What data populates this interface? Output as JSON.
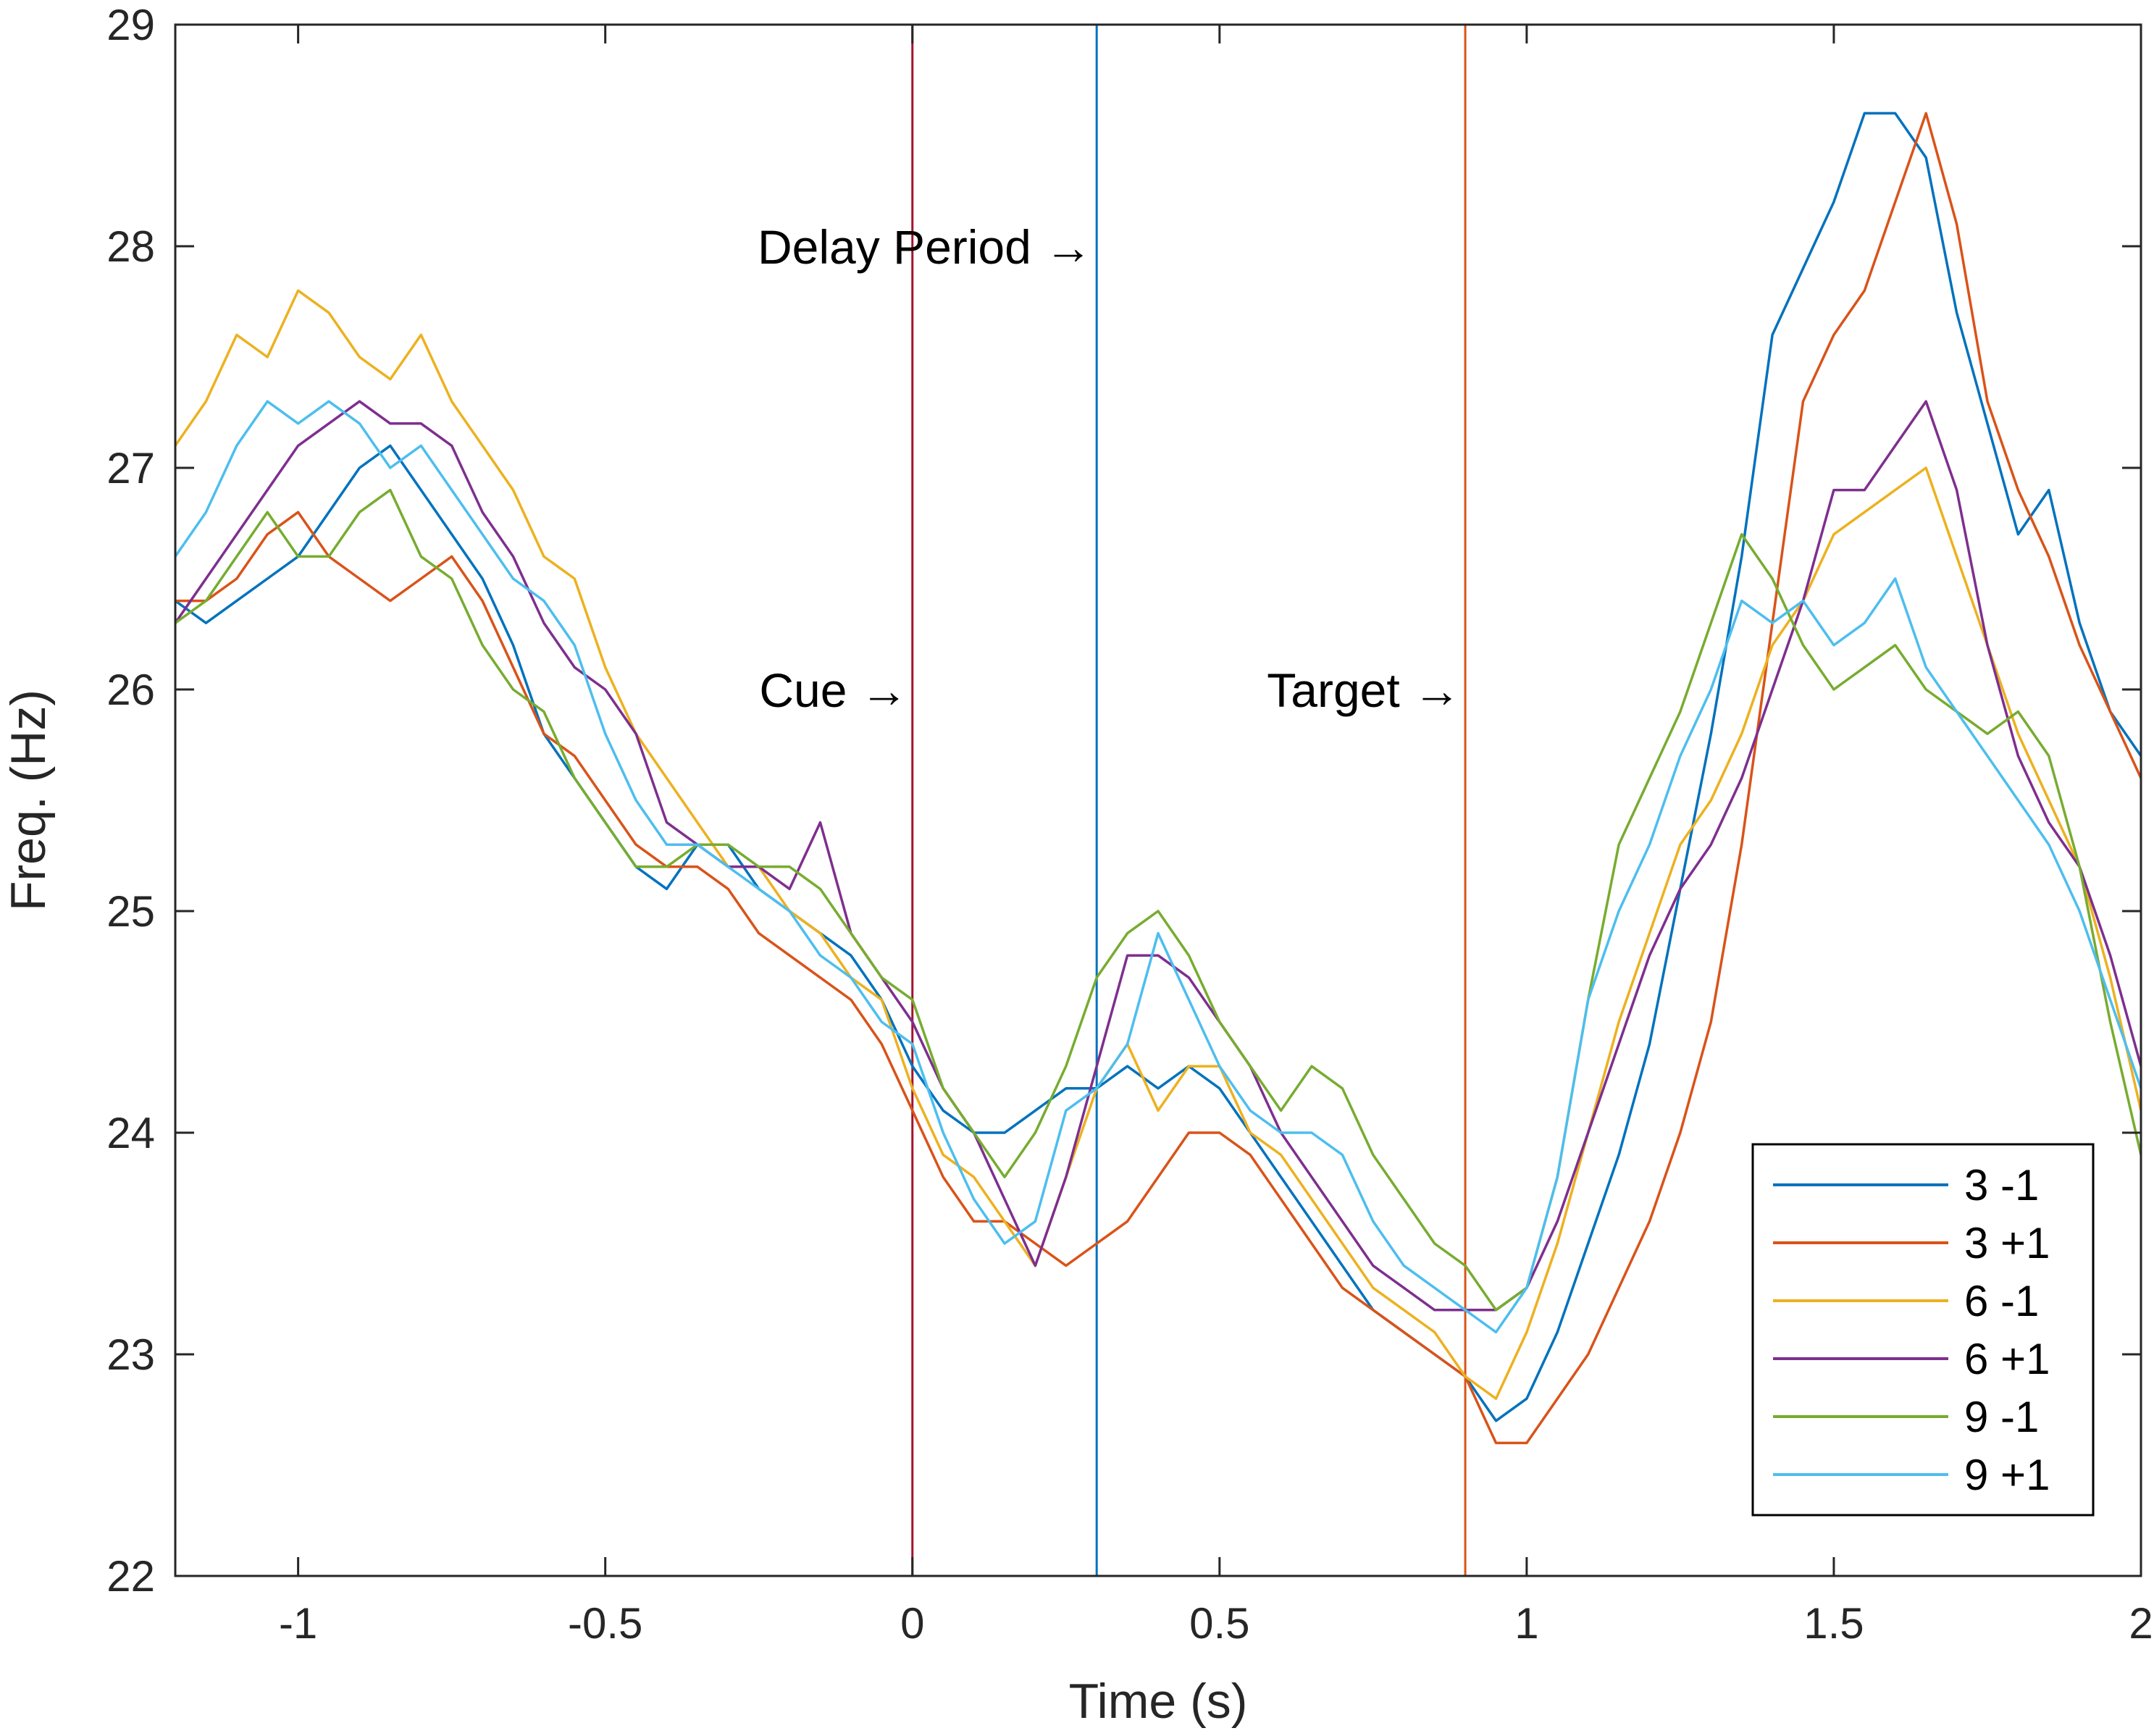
{
  "chart_data": {
    "type": "line",
    "title": "",
    "xlabel": "Time (s)",
    "ylabel": "Freq. (Hz)",
    "xlim": [
      -1.2,
      2
    ],
    "ylim": [
      22,
      29
    ],
    "xticks": [
      -1,
      -0.5,
      0,
      0.5,
      1,
      1.5,
      2
    ],
    "xtick_labels": [
      "-1",
      "-0.5",
      "0",
      "0.5",
      "1",
      "1.5",
      "2"
    ],
    "yticks": [
      22,
      23,
      24,
      25,
      26,
      27,
      28,
      29
    ],
    "ytick_labels": [
      "22",
      "23",
      "24",
      "25",
      "26",
      "27",
      "28",
      "29"
    ],
    "grid": false,
    "legend_position": "bottom-right",
    "vlines": [
      {
        "x": 0,
        "color": "#A2142F"
      },
      {
        "x": 0.3,
        "color": "#0072BD"
      },
      {
        "x": 0.9,
        "color": "#D95319"
      }
    ],
    "annotations": [
      {
        "text": "Cue →",
        "x": 0,
        "y": 26
      },
      {
        "text": "Delay Period →",
        "x": 0.3,
        "y": 28
      },
      {
        "text": "Target →",
        "x": 0.9,
        "y": 26
      }
    ],
    "series": [
      {
        "name": "3 -1",
        "color": "#0072BD",
        "x": [
          -1.2,
          -1.15,
          -1.1,
          -1.05,
          -1.0,
          -0.95,
          -0.9,
          -0.85,
          -0.8,
          -0.75,
          -0.7,
          -0.65,
          -0.6,
          -0.55,
          -0.5,
          -0.45,
          -0.4,
          -0.35,
          -0.3,
          -0.25,
          -0.2,
          -0.15,
          -0.1,
          -0.05,
          0.0,
          0.05,
          0.1,
          0.15,
          0.2,
          0.25,
          0.3,
          0.35,
          0.4,
          0.45,
          0.5,
          0.55,
          0.6,
          0.65,
          0.7,
          0.75,
          0.8,
          0.85,
          0.9,
          0.95,
          1.0,
          1.05,
          1.1,
          1.15,
          1.2,
          1.25,
          1.3,
          1.35,
          1.4,
          1.45,
          1.5,
          1.55,
          1.6,
          1.65,
          1.7,
          1.75,
          1.8,
          1.85,
          1.9,
          1.95,
          2.0
        ],
        "values": [
          26.4,
          26.3,
          26.4,
          26.5,
          26.6,
          26.8,
          27.0,
          27.1,
          26.9,
          26.7,
          26.5,
          26.2,
          25.8,
          25.6,
          25.4,
          25.2,
          25.1,
          25.3,
          25.3,
          25.1,
          25.0,
          24.9,
          24.8,
          24.6,
          24.3,
          24.1,
          24.0,
          24.0,
          24.1,
          24.2,
          24.2,
          24.3,
          24.2,
          24.3,
          24.2,
          24.0,
          23.8,
          23.6,
          23.4,
          23.2,
          23.1,
          23.0,
          22.9,
          22.7,
          22.8,
          23.1,
          23.5,
          23.9,
          24.4,
          25.1,
          25.8,
          26.6,
          27.6,
          27.9,
          28.2,
          28.6,
          28.6,
          28.4,
          27.7,
          27.2,
          26.7,
          26.9,
          26.3,
          25.9,
          25.7
        ]
      },
      {
        "name": "3 +1",
        "color": "#D95319",
        "x": [
          -1.2,
          -1.15,
          -1.1,
          -1.05,
          -1.0,
          -0.95,
          -0.9,
          -0.85,
          -0.8,
          -0.75,
          -0.7,
          -0.65,
          -0.6,
          -0.55,
          -0.5,
          -0.45,
          -0.4,
          -0.35,
          -0.3,
          -0.25,
          -0.2,
          -0.15,
          -0.1,
          -0.05,
          0.0,
          0.05,
          0.1,
          0.15,
          0.2,
          0.25,
          0.3,
          0.35,
          0.4,
          0.45,
          0.5,
          0.55,
          0.6,
          0.65,
          0.7,
          0.75,
          0.8,
          0.85,
          0.9,
          0.95,
          1.0,
          1.05,
          1.1,
          1.15,
          1.2,
          1.25,
          1.3,
          1.35,
          1.4,
          1.45,
          1.5,
          1.55,
          1.6,
          1.65,
          1.7,
          1.75,
          1.8,
          1.85,
          1.9,
          1.95,
          2.0
        ],
        "values": [
          26.4,
          26.4,
          26.5,
          26.7,
          26.8,
          26.6,
          26.5,
          26.4,
          26.5,
          26.6,
          26.4,
          26.1,
          25.8,
          25.7,
          25.5,
          25.3,
          25.2,
          25.2,
          25.1,
          24.9,
          24.8,
          24.7,
          24.6,
          24.4,
          24.1,
          23.8,
          23.6,
          23.6,
          23.5,
          23.4,
          23.5,
          23.6,
          23.8,
          24.0,
          24.0,
          23.9,
          23.7,
          23.5,
          23.3,
          23.2,
          23.1,
          23.0,
          22.9,
          22.6,
          22.6,
          22.8,
          23.0,
          23.3,
          23.6,
          24.0,
          24.5,
          25.3,
          26.3,
          27.3,
          27.6,
          27.8,
          28.2,
          28.6,
          28.1,
          27.3,
          26.9,
          26.6,
          26.2,
          25.9,
          25.6
        ]
      },
      {
        "name": "6 -1",
        "color": "#EDB120",
        "x": [
          -1.2,
          -1.15,
          -1.1,
          -1.05,
          -1.0,
          -0.95,
          -0.9,
          -0.85,
          -0.8,
          -0.75,
          -0.7,
          -0.65,
          -0.6,
          -0.55,
          -0.5,
          -0.45,
          -0.4,
          -0.35,
          -0.3,
          -0.25,
          -0.2,
          -0.15,
          -0.1,
          -0.05,
          0.0,
          0.05,
          0.1,
          0.15,
          0.2,
          0.25,
          0.3,
          0.35,
          0.4,
          0.45,
          0.5,
          0.55,
          0.6,
          0.65,
          0.7,
          0.75,
          0.8,
          0.85,
          0.9,
          0.95,
          1.0,
          1.05,
          1.1,
          1.15,
          1.2,
          1.25,
          1.3,
          1.35,
          1.4,
          1.45,
          1.5,
          1.55,
          1.6,
          1.65,
          1.7,
          1.75,
          1.8,
          1.85,
          1.9,
          1.95,
          2.0
        ],
        "values": [
          27.1,
          27.3,
          27.6,
          27.5,
          27.8,
          27.7,
          27.5,
          27.4,
          27.6,
          27.3,
          27.1,
          26.9,
          26.6,
          26.5,
          26.1,
          25.8,
          25.6,
          25.4,
          25.2,
          25.2,
          25.0,
          24.9,
          24.7,
          24.6,
          24.2,
          23.9,
          23.8,
          23.6,
          23.4,
          23.8,
          24.2,
          24.4,
          24.1,
          24.3,
          24.3,
          24.0,
          23.9,
          23.7,
          23.5,
          23.3,
          23.2,
          23.1,
          22.9,
          22.8,
          23.1,
          23.5,
          24.0,
          24.5,
          24.9,
          25.3,
          25.5,
          25.8,
          26.2,
          26.4,
          26.7,
          26.8,
          26.9,
          27.0,
          26.6,
          26.2,
          25.8,
          25.5,
          25.2,
          24.7,
          24.1
        ]
      },
      {
        "name": "6 +1",
        "color": "#7E2F8E",
        "x": [
          -1.2,
          -1.15,
          -1.1,
          -1.05,
          -1.0,
          -0.95,
          -0.9,
          -0.85,
          -0.8,
          -0.75,
          -0.7,
          -0.65,
          -0.6,
          -0.55,
          -0.5,
          -0.45,
          -0.4,
          -0.35,
          -0.3,
          -0.25,
          -0.2,
          -0.15,
          -0.1,
          -0.05,
          0.0,
          0.05,
          0.1,
          0.15,
          0.2,
          0.25,
          0.3,
          0.35,
          0.4,
          0.45,
          0.5,
          0.55,
          0.6,
          0.65,
          0.7,
          0.75,
          0.8,
          0.85,
          0.9,
          0.95,
          1.0,
          1.05,
          1.1,
          1.15,
          1.2,
          1.25,
          1.3,
          1.35,
          1.4,
          1.45,
          1.5,
          1.55,
          1.6,
          1.65,
          1.7,
          1.75,
          1.8,
          1.85,
          1.9,
          1.95,
          2.0
        ],
        "values": [
          26.3,
          26.5,
          26.7,
          26.9,
          27.1,
          27.2,
          27.3,
          27.2,
          27.2,
          27.1,
          26.8,
          26.6,
          26.3,
          26.1,
          26.0,
          25.8,
          25.4,
          25.3,
          25.2,
          25.2,
          25.1,
          25.4,
          24.9,
          24.7,
          24.5,
          24.2,
          24.0,
          23.7,
          23.4,
          23.8,
          24.3,
          24.8,
          24.8,
          24.7,
          24.5,
          24.3,
          24.0,
          23.8,
          23.6,
          23.4,
          23.3,
          23.2,
          23.2,
          23.2,
          23.3,
          23.6,
          24.0,
          24.4,
          24.8,
          25.1,
          25.3,
          25.6,
          26.0,
          26.4,
          26.9,
          26.9,
          27.1,
          27.3,
          26.9,
          26.2,
          25.7,
          25.4,
          25.2,
          24.8,
          24.3
        ]
      },
      {
        "name": "9 -1",
        "color": "#77AC30",
        "x": [
          -1.2,
          -1.15,
          -1.1,
          -1.05,
          -1.0,
          -0.95,
          -0.9,
          -0.85,
          -0.8,
          -0.75,
          -0.7,
          -0.65,
          -0.6,
          -0.55,
          -0.5,
          -0.45,
          -0.4,
          -0.35,
          -0.3,
          -0.25,
          -0.2,
          -0.15,
          -0.1,
          -0.05,
          0.0,
          0.05,
          0.1,
          0.15,
          0.2,
          0.25,
          0.3,
          0.35,
          0.4,
          0.45,
          0.5,
          0.55,
          0.6,
          0.65,
          0.7,
          0.75,
          0.8,
          0.85,
          0.9,
          0.95,
          1.0,
          1.05,
          1.1,
          1.15,
          1.2,
          1.25,
          1.3,
          1.35,
          1.4,
          1.45,
          1.5,
          1.55,
          1.6,
          1.65,
          1.7,
          1.75,
          1.8,
          1.85,
          1.9,
          1.95,
          2.0
        ],
        "values": [
          26.3,
          26.4,
          26.6,
          26.8,
          26.6,
          26.6,
          26.8,
          26.9,
          26.6,
          26.5,
          26.2,
          26.0,
          25.9,
          25.6,
          25.4,
          25.2,
          25.2,
          25.3,
          25.3,
          25.2,
          25.2,
          25.1,
          24.9,
          24.7,
          24.6,
          24.2,
          24.0,
          23.8,
          24.0,
          24.3,
          24.7,
          24.9,
          25.0,
          24.8,
          24.5,
          24.3,
          24.1,
          24.3,
          24.2,
          23.9,
          23.7,
          23.5,
          23.4,
          23.2,
          23.3,
          23.8,
          24.6,
          25.3,
          25.6,
          25.9,
          26.3,
          26.7,
          26.5,
          26.2,
          26.0,
          26.1,
          26.2,
          26.0,
          25.9,
          25.8,
          25.9,
          25.7,
          25.2,
          24.5,
          23.9
        ]
      },
      {
        "name": "9 +1",
        "color": "#4DBEEE",
        "x": [
          -1.2,
          -1.15,
          -1.1,
          -1.05,
          -1.0,
          -0.95,
          -0.9,
          -0.85,
          -0.8,
          -0.75,
          -0.7,
          -0.65,
          -0.6,
          -0.55,
          -0.5,
          -0.45,
          -0.4,
          -0.35,
          -0.3,
          -0.25,
          -0.2,
          -0.15,
          -0.1,
          -0.05,
          0.0,
          0.05,
          0.1,
          0.15,
          0.2,
          0.25,
          0.3,
          0.35,
          0.4,
          0.45,
          0.5,
          0.55,
          0.6,
          0.65,
          0.7,
          0.75,
          0.8,
          0.85,
          0.9,
          0.95,
          1.0,
          1.05,
          1.1,
          1.15,
          1.2,
          1.25,
          1.3,
          1.35,
          1.4,
          1.45,
          1.5,
          1.55,
          1.6,
          1.65,
          1.7,
          1.75,
          1.8,
          1.85,
          1.9,
          1.95,
          2.0
        ],
        "values": [
          26.6,
          26.8,
          27.1,
          27.3,
          27.2,
          27.3,
          27.2,
          27.0,
          27.1,
          26.9,
          26.7,
          26.5,
          26.4,
          26.2,
          25.8,
          25.5,
          25.3,
          25.3,
          25.2,
          25.1,
          25.0,
          24.8,
          24.7,
          24.5,
          24.4,
          24.0,
          23.7,
          23.5,
          23.6,
          24.1,
          24.2,
          24.4,
          24.9,
          24.6,
          24.3,
          24.1,
          24.0,
          24.0,
          23.9,
          23.6,
          23.4,
          23.3,
          23.2,
          23.1,
          23.3,
          23.8,
          24.6,
          25.0,
          25.3,
          25.7,
          26.0,
          26.4,
          26.3,
          26.4,
          26.2,
          26.3,
          26.5,
          26.1,
          25.9,
          25.7,
          25.5,
          25.3,
          25.0,
          24.6,
          24.2
        ]
      }
    ]
  }
}
